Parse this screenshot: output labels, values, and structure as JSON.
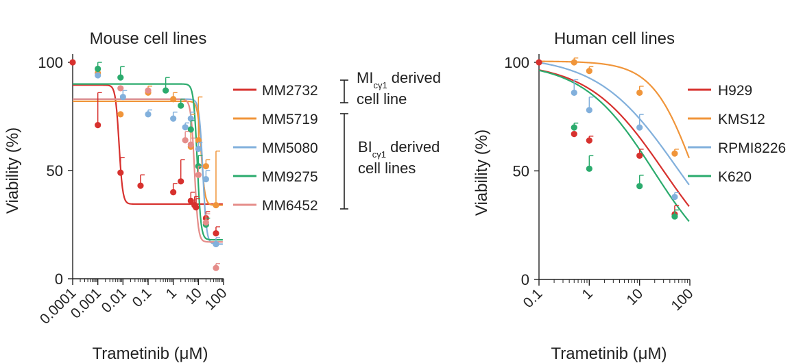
{
  "chart_data": [
    {
      "type": "scatter",
      "title": "Mouse cell lines",
      "xlabel": "Trametinib (μM)",
      "ylabel": "Viability (%)",
      "xscale": "log",
      "xlim": [
        0.0001,
        100
      ],
      "ylim": [
        0,
        100
      ],
      "xticks": [
        0.0001,
        0.001,
        0.01,
        0.1,
        1,
        10,
        100
      ],
      "xtick_labels": [
        "0.0001",
        "0.001",
        "0.01",
        "0.1",
        "1",
        "10",
        "100"
      ],
      "yticks": [
        0,
        50,
        100
      ],
      "ytick_labels": [
        "0",
        "50",
        "100"
      ],
      "series": [
        {
          "name": "MM2732",
          "color": "#d7312e",
          "x": [
            0.0001,
            0.001,
            0.008,
            0.05,
            1,
            2,
            5,
            7,
            8,
            20,
            50
          ],
          "y": [
            100,
            71,
            49,
            43,
            40,
            45,
            36,
            34,
            33,
            28,
            21
          ],
          "err": [
            0,
            15,
            7,
            5,
            4,
            10,
            4,
            4,
            4,
            3,
            3
          ],
          "fit": {
            "top": 89.5,
            "bottom": 34.5,
            "ec50": 0.007,
            "hill": 6
          }
        },
        {
          "name": "MM5719",
          "color": "#f0953a",
          "x": [
            0.001,
            0.008,
            0.1,
            1,
            5,
            10,
            20,
            50
          ],
          "y": [
            95,
            76,
            86,
            83,
            61,
            64,
            52,
            34
          ],
          "err": [
            0,
            0,
            3,
            3,
            15,
            20,
            3,
            25
          ],
          "fit": {
            "top": 82,
            "bottom": 34,
            "ec50": 13,
            "hill": 6
          }
        },
        {
          "name": "MM5080",
          "color": "#82b0dc",
          "x": [
            0.001,
            0.01,
            0.1,
            1,
            3,
            5,
            10,
            20,
            50
          ],
          "y": [
            94,
            84,
            76,
            74,
            70,
            74,
            60,
            46,
            16
          ],
          "err": [
            0,
            3,
            2,
            3,
            2,
            3,
            3,
            4,
            3
          ],
          "fit": {
            "top": 83,
            "bottom": 16,
            "ec50": 15,
            "hill": 6
          }
        },
        {
          "name": "MM9275",
          "color": "#2bab6d",
          "x": [
            0.001,
            0.008,
            0.5,
            2,
            5,
            10,
            20
          ],
          "y": [
            97,
            93,
            87,
            80,
            69,
            52,
            25
          ],
          "err": [
            3,
            5,
            6,
            3,
            4,
            5,
            3
          ],
          "fit": {
            "top": 90,
            "bottom": 18,
            "ec50": 9,
            "hill": 6
          }
        },
        {
          "name": "MM6452",
          "color": "#e58d8a",
          "x": [
            0.008,
            0.1,
            3,
            5,
            10,
            20,
            50
          ],
          "y": [
            88,
            87,
            64,
            62,
            48,
            26,
            5
          ],
          "err": [
            0,
            0,
            4,
            3,
            4,
            4,
            2
          ],
          "fit": {
            "top": 83,
            "bottom": 17,
            "ec50": 7,
            "hill": 6
          }
        }
      ],
      "annotations": [
        {
          "label_main": "MI",
          "label_sub": "cγ1",
          "label_rest": " derived",
          "label_line2": "cell line"
        },
        {
          "label_main": "BI",
          "label_sub": "cγ1",
          "label_rest": " derived",
          "label_line2": "cell lines"
        }
      ]
    },
    {
      "type": "scatter",
      "title": "Human cell lines",
      "xlabel": "Trametinib (μM)",
      "ylabel": "Viability (%)",
      "xscale": "log",
      "xlim": [
        0.1,
        100
      ],
      "ylim": [
        0,
        100
      ],
      "xticks": [
        0.1,
        1,
        10,
        100
      ],
      "xtick_labels": [
        "0.1",
        "1",
        "10",
        "100"
      ],
      "yticks": [
        0,
        50,
        100
      ],
      "ytick_labels": [
        "0",
        "50",
        "100"
      ],
      "series": [
        {
          "name": "H929",
          "color": "#d7312e",
          "x": [
            0.1,
            0.5,
            1,
            10,
            50
          ],
          "y": [
            100,
            67,
            64,
            57,
            30
          ],
          "err": [
            0,
            0,
            2,
            3,
            4
          ],
          "fit": {
            "top": 100,
            "bottom": 0,
            "ec50": 30,
            "hill": 0.58
          }
        },
        {
          "name": "KMS12",
          "color": "#f0953a",
          "x": [
            0.5,
            1,
            10,
            50
          ],
          "y": [
            100,
            96,
            86,
            58
          ],
          "err": [
            2,
            2,
            3,
            2
          ],
          "fit": {
            "top": 100.5,
            "bottom": 0,
            "ec50": 120,
            "hill": 1.05
          }
        },
        {
          "name": "RPMI8226",
          "color": "#82b0dc",
          "x": [
            0.5,
            1,
            10,
            50
          ],
          "y": [
            86,
            78,
            70,
            38
          ],
          "err": [
            6,
            6,
            6,
            2
          ],
          "fit": {
            "top": 103,
            "bottom": 0,
            "ec50": 55,
            "hill": 0.55
          }
        },
        {
          "name": "K620",
          "color": "#2bab6d",
          "x": [
            0.5,
            1,
            10,
            50
          ],
          "y": [
            70,
            51,
            43,
            29
          ],
          "err": [
            2,
            6,
            5,
            3
          ],
          "fit": {
            "top": 100,
            "bottom": 0,
            "ec50": 19,
            "hill": 0.62
          }
        }
      ]
    }
  ]
}
